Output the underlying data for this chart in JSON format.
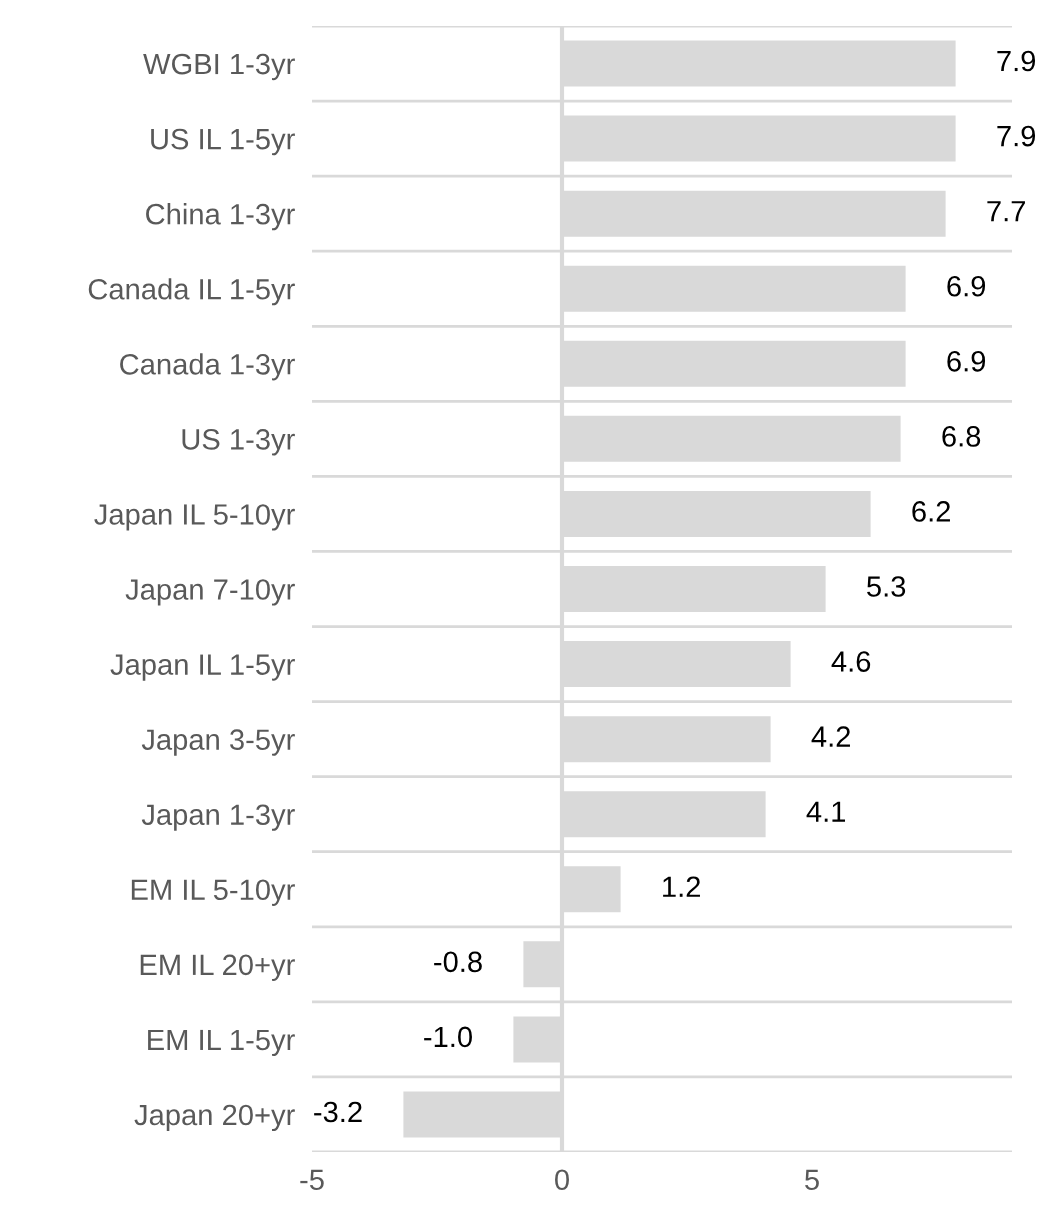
{
  "chart_data": {
    "type": "bar",
    "orientation": "horizontal",
    "categories": [
      "WGBI 1-3yr",
      "US IL 1-5yr",
      "China 1-3yr",
      "Canada IL 1-5yr",
      "Canada 1-3yr",
      "US 1-3yr",
      "Japan IL 5-10yr",
      "Japan 7-10yr",
      "Japan IL 1-5yr",
      "Japan 3-5yr",
      "Japan 1-3yr",
      "EM IL 5-10yr",
      "EM IL 20+yr",
      "EM IL 1-5yr",
      "Japan 20+yr"
    ],
    "values": [
      7.9,
      7.9,
      7.7,
      6.9,
      6.9,
      6.8,
      6.2,
      5.3,
      4.6,
      4.2,
      4.1,
      1.2,
      -0.8,
      -1.0,
      -3.2
    ],
    "color": "#d9d9d9",
    "value_labels": [
      "7.9",
      "7.9",
      "7.7",
      "6.9",
      "6.9",
      "6.8",
      "6.2",
      "5.3",
      "4.6",
      "4.2",
      "4.1",
      "1.2",
      "-0.8",
      "-1.0",
      "-3.2"
    ],
    "xlim": [
      -5,
      9
    ],
    "xticks": [
      -5,
      0,
      5
    ],
    "grid": "y",
    "legend": false
  }
}
